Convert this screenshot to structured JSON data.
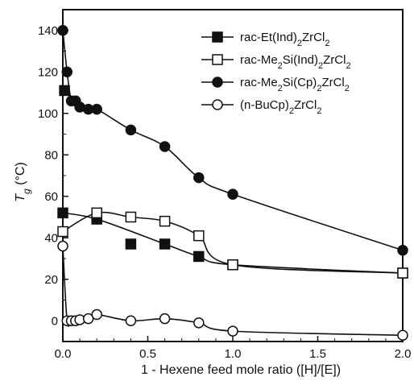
{
  "chart_data": {
    "type": "line",
    "title": "",
    "xlabel": "1 - Hexene feed mole ratio ([H]/[E])",
    "ylabel": "Tg (°C)",
    "ylabel_parts": {
      "symbol": "T",
      "subscript": "g",
      "unit": "(°C)"
    },
    "xlim": [
      0,
      2.0
    ],
    "ylim": [
      -10,
      150
    ],
    "x_ticks": [
      0.0,
      0.5,
      1.0,
      1.5,
      2.0
    ],
    "x_tick_labels": [
      "0.0",
      "0.5",
      "1.0",
      "1.5",
      "2.0"
    ],
    "y_ticks": [
      0,
      20,
      40,
      60,
      80,
      100,
      120,
      140
    ],
    "y_tick_labels": [
      "0",
      "20",
      "40",
      "60",
      "80",
      "100",
      "120",
      "140"
    ],
    "grid": false,
    "legend_placement": "top-right",
    "series": [
      {
        "name": "rac-Et(Ind)2ZrCl2",
        "name_parts": [
          [
            "rac-Et(Ind)",
            false
          ],
          [
            "2",
            true
          ],
          [
            "ZrCl",
            false
          ],
          [
            "2",
            true
          ]
        ],
        "marker": "filled-square",
        "x": [
          0,
          0.01,
          0.2,
          0.4,
          0.6,
          0.8,
          1.0,
          2.0
        ],
        "y": [
          52,
          111,
          49,
          37,
          37,
          31,
          27,
          23
        ],
        "curve_x": [
          0,
          0.2,
          0.6,
          0.8,
          1.0,
          2.0
        ],
        "curve_y": [
          52,
          49,
          37,
          31,
          27,
          23
        ]
      },
      {
        "name": "rac-Me2Si(Ind)2ZrCl2",
        "name_parts": [
          [
            "rac-Me",
            false
          ],
          [
            "2",
            true
          ],
          [
            "Si(Ind)",
            false
          ],
          [
            "2",
            true
          ],
          [
            "ZrCl",
            false
          ],
          [
            "2",
            true
          ]
        ],
        "marker": "open-square",
        "x": [
          0,
          0.2,
          0.4,
          0.6,
          0.8,
          1.0,
          2.0
        ],
        "y": [
          43,
          52,
          50,
          48,
          41,
          27,
          23
        ],
        "curve_x": [
          0,
          0.2,
          0.4,
          0.6,
          0.8,
          1.0,
          2.0
        ],
        "curve_y": [
          43,
          52,
          50,
          48,
          41,
          27,
          23
        ]
      },
      {
        "name": "rac-Me2Si(Cp)2ZrCl2",
        "name_parts": [
          [
            "rac-Me",
            false
          ],
          [
            "2",
            true
          ],
          [
            "Si(Cp)",
            false
          ],
          [
            "2",
            true
          ],
          [
            "ZrCl",
            false
          ],
          [
            "2",
            true
          ]
        ],
        "marker": "filled-circle",
        "x": [
          0,
          0.025,
          0.05,
          0.075,
          0.1,
          0.15,
          0.2,
          0.4,
          0.6,
          0.8,
          1.0,
          2.0
        ],
        "y": [
          140,
          120,
          106,
          106,
          103,
          102,
          102,
          92,
          84,
          69,
          61,
          34
        ],
        "curve_x": [
          0,
          0.025,
          0.05,
          0.075,
          0.1,
          0.15,
          0.2,
          0.4,
          0.6,
          0.8,
          1.0,
          2.0
        ],
        "curve_y": [
          140,
          120,
          106,
          106,
          103,
          102,
          102,
          92,
          84,
          69,
          61,
          34
        ]
      },
      {
        "name": "(n-BuCp)2ZrCl2",
        "name_parts": [
          [
            "(n-BuCp)",
            false
          ],
          [
            "2",
            true
          ],
          [
            "ZrCl",
            false
          ],
          [
            "2",
            true
          ]
        ],
        "marker": "open-circle",
        "x": [
          0,
          0.025,
          0.05,
          0.075,
          0.1,
          0.15,
          0.2,
          0.4,
          0.6,
          0.8,
          1.0,
          2.0
        ],
        "y": [
          36,
          0,
          0,
          0,
          0.5,
          1,
          3,
          0,
          1,
          -1,
          -5,
          -7
        ],
        "curve_x": [
          0,
          0.025,
          0.05,
          0.075,
          0.1,
          0.15,
          0.2,
          0.4,
          0.6,
          0.8,
          1.0,
          2.0
        ],
        "curve_y": [
          36,
          0,
          0,
          0,
          0.5,
          1,
          3,
          0,
          1,
          -1,
          -5,
          -7
        ]
      }
    ]
  }
}
